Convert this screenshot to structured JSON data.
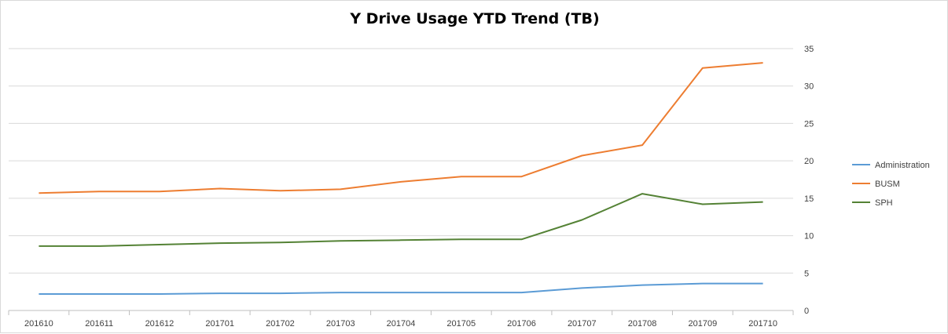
{
  "chart_data": {
    "type": "line",
    "title": "Y Drive Usage YTD Trend (TB)",
    "xlabel": "",
    "ylabel": "",
    "categories": [
      "201610",
      "201611",
      "201612",
      "201701",
      "201702",
      "201703",
      "201704",
      "201705",
      "201706",
      "201707",
      "201708",
      "201709",
      "201710"
    ],
    "ylim": [
      0,
      35
    ],
    "yticks": [
      "0",
      "5",
      "10",
      "15",
      "20",
      "25",
      "30",
      "35"
    ],
    "y_axis_side": "right",
    "grid": true,
    "legend_position": "right",
    "series": [
      {
        "name": "Administration",
        "color": "#5b9bd5",
        "values": [
          2.2,
          2.2,
          2.2,
          2.3,
          2.3,
          2.4,
          2.4,
          2.4,
          2.4,
          3.0,
          3.4,
          3.6,
          3.6
        ]
      },
      {
        "name": "BUSM",
        "color": "#ed7d31",
        "values": [
          15.7,
          15.9,
          15.9,
          16.3,
          16.0,
          16.2,
          17.2,
          17.9,
          17.9,
          20.7,
          22.1,
          32.4,
          33.1
        ]
      },
      {
        "name": "SPH",
        "color": "#548235",
        "values": [
          8.6,
          8.6,
          8.8,
          9.0,
          9.1,
          9.3,
          9.4,
          9.5,
          9.5,
          12.1,
          15.6,
          14.2,
          14.5
        ]
      }
    ]
  }
}
